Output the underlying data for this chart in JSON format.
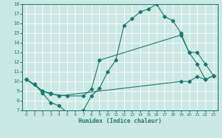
{
  "xlabel": "Humidex (Indice chaleur)",
  "bg_color": "#cce8e4",
  "line_color": "#1a7a6e",
  "xlim": [
    -0.5,
    23.5
  ],
  "ylim": [
    7,
    18
  ],
  "xticks": [
    0,
    1,
    2,
    3,
    4,
    5,
    6,
    7,
    8,
    9,
    10,
    11,
    12,
    13,
    14,
    15,
    16,
    17,
    18,
    19,
    20,
    21,
    22,
    23
  ],
  "yticks": [
    7,
    8,
    9,
    10,
    11,
    12,
    13,
    14,
    15,
    16,
    17,
    18
  ],
  "line1_x": [
    0,
    1,
    2,
    3,
    4,
    5,
    6,
    7,
    8,
    9,
    10,
    11,
    12,
    13,
    14,
    15,
    16,
    17,
    18,
    19,
    20,
    21,
    22,
    23
  ],
  "line1_y": [
    10.2,
    9.7,
    8.8,
    7.8,
    7.5,
    6.8,
    6.8,
    7.0,
    8.5,
    9.3,
    11.0,
    12.2,
    15.8,
    16.5,
    17.2,
    17.5,
    18.0,
    16.7,
    16.3,
    15.0,
    13.0,
    11.8,
    10.2,
    10.6
  ],
  "line2_x": [
    0,
    2,
    3,
    5,
    7,
    8,
    9,
    19,
    20,
    21,
    22,
    23
  ],
  "line2_y": [
    10.2,
    9.0,
    8.7,
    8.5,
    8.5,
    9.2,
    12.2,
    14.8,
    13.0,
    13.0,
    11.8,
    10.6
  ],
  "line3_x": [
    0,
    1,
    2,
    3,
    4,
    19,
    20,
    21,
    22,
    23
  ],
  "line3_y": [
    10.2,
    9.7,
    9.0,
    8.8,
    8.5,
    10.0,
    10.0,
    10.5,
    10.2,
    10.6
  ],
  "grid_color": "#ffffff",
  "marker": "D",
  "markersize": 2.5,
  "linewidth": 0.85
}
